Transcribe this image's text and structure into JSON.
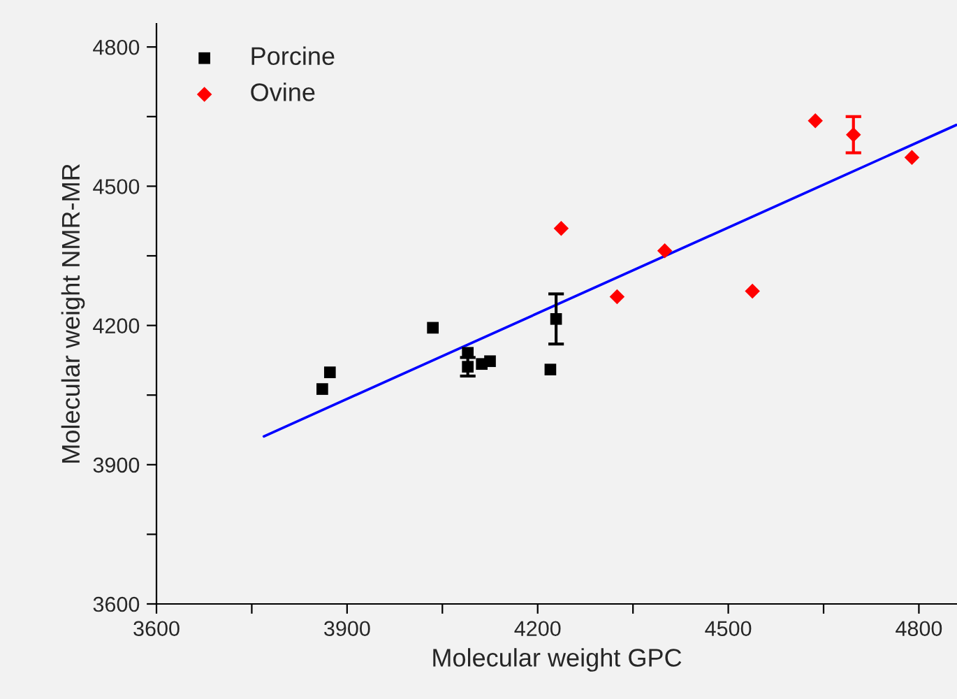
{
  "chart_data": {
    "type": "scatter",
    "xlabel": "Molecular weight GPC",
    "ylabel": "Molecular weight NMR-MR",
    "series": [
      {
        "name": "Porcine",
        "color": "#000000",
        "marker": "square",
        "x": [
          3861,
          3873,
          4035,
          4090,
          4090,
          4112,
          4125,
          4220,
          4229
        ],
        "values": [
          4063,
          4099,
          4195,
          4141,
          4111,
          4117,
          4123,
          4105,
          4214
        ],
        "errors": [
          null,
          null,
          null,
          null,
          20,
          null,
          null,
          null,
          54
        ]
      },
      {
        "name": "Ovine",
        "color": "#ff0000",
        "marker": "diamond",
        "x": [
          4237,
          4325,
          4400,
          4538,
          4637,
          4697,
          4789
        ],
        "values": [
          4409,
          4262,
          4361,
          4274,
          4641,
          4611,
          4562
        ],
        "errors": [
          null,
          null,
          null,
          null,
          null,
          39,
          null
        ]
      },
      {
        "type": "line",
        "color": "#0000ff",
        "x": [
          3769,
          4859
        ],
        "values": [
          3961,
          4632
        ]
      }
    ],
    "xlim": [
      3600,
      4860
    ],
    "ylim": [
      3600,
      4850
    ],
    "xticks": [
      3600,
      {
        "value": 3750,
        "label": null
      },
      3900,
      {
        "value": 4050,
        "label": null
      },
      4200,
      {
        "value": 4350,
        "label": null
      },
      4500,
      {
        "value": 4650,
        "label": null
      },
      4800
    ],
    "yticks": [
      3600,
      {
        "value": 3750,
        "label": null
      },
      3900,
      {
        "value": 4050,
        "label": null
      },
      4200,
      {
        "value": 4350,
        "label": null
      },
      4500,
      {
        "value": 4650,
        "label": null
      },
      4800
    ],
    "legend": "top left",
    "grid": false
  }
}
